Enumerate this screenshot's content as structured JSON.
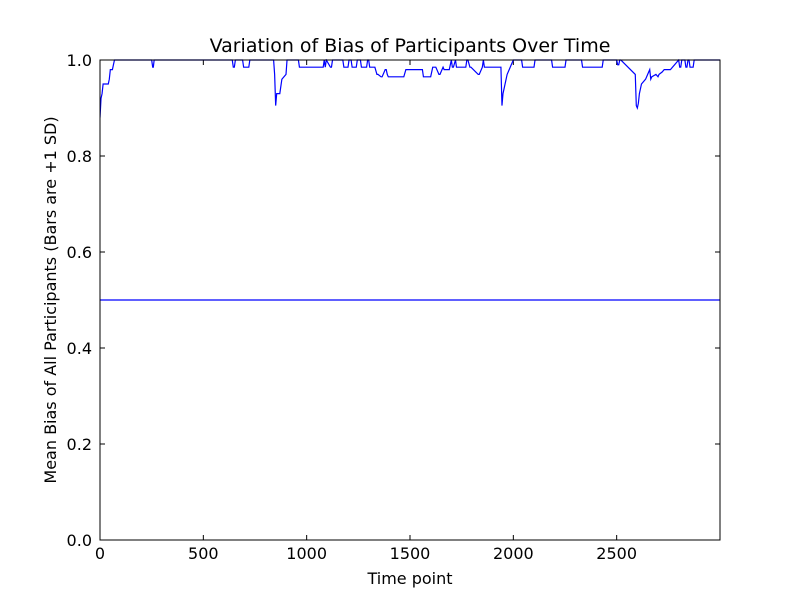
{
  "chart_data": {
    "type": "line",
    "title": "Variation of Bias of Participants Over Time",
    "xlabel": "Time point",
    "ylabel": "Mean Bias of All Participants (Bars are +1 SD)",
    "xlim": [
      0,
      3000
    ],
    "ylim": [
      0,
      1.0
    ],
    "xticks": [
      0,
      500,
      1000,
      1500,
      2000,
      2500
    ],
    "xtick_labels": [
      "0",
      "500",
      "1000",
      "1500",
      "2000",
      "2500"
    ],
    "yticks": [
      0,
      0.2,
      0.4,
      0.6,
      0.8,
      1.0
    ],
    "ytick_labels": [
      "0.0",
      "0.2",
      "0.4",
      "0.6",
      "0.8",
      "1.0"
    ],
    "grid": false,
    "line_color": "#0000ff",
    "series": [
      {
        "values_description": "mean bias",
        "x": [
          0,
          3000
        ],
        "y": [
          0.5,
          0.5
        ]
      },
      {
        "values_description": "mean + 1 SD",
        "x": [
          0,
          5,
          10,
          15,
          20,
          40,
          45,
          50,
          60,
          65,
          70,
          80,
          90,
          250,
          255,
          258,
          262,
          640,
          645,
          650,
          655,
          690,
          695,
          720,
          725,
          840,
          845,
          850,
          855,
          870,
          880,
          900,
          905,
          960,
          965,
          1080,
          1085,
          1090,
          1095,
          1115,
          1120,
          1125,
          1130,
          1175,
          1180,
          1200,
          1205,
          1215,
          1220,
          1240,
          1245,
          1260,
          1265,
          1290,
          1295,
          1300,
          1305,
          1330,
          1340,
          1345,
          1360,
          1365,
          1380,
          1385,
          1390,
          1395,
          1470,
          1480,
          1500,
          1505,
          1560,
          1565,
          1600,
          1610,
          1620,
          1625,
          1640,
          1645,
          1660,
          1665,
          1690,
          1700,
          1705,
          1710,
          1720,
          1725,
          1770,
          1775,
          1780,
          1790,
          1795,
          1830,
          1835,
          1850,
          1855,
          1860,
          1940,
          1945,
          1950,
          1960,
          1970,
          1980,
          1990,
          2000,
          2010,
          2040,
          2045,
          2050,
          2060,
          2070,
          2080,
          2100,
          2105,
          2185,
          2190,
          2250,
          2255,
          2330,
          2335,
          2430,
          2435,
          2500,
          2505,
          2510,
          2515,
          2520,
          2590,
          2595,
          2600,
          2605,
          2610,
          2620,
          2640,
          2650,
          2660,
          2665,
          2670,
          2690,
          2700,
          2705,
          2720,
          2730,
          2760,
          2800,
          2805,
          2810,
          2815,
          2830,
          2835,
          2840,
          2845,
          2850,
          2855,
          2870,
          2875,
          3000
        ],
        "y": [
          0.88,
          0.92,
          0.93,
          0.95,
          0.95,
          0.95,
          0.96,
          0.98,
          0.98,
          0.99,
          1.0,
          1.0,
          1.0,
          1.0,
          0.985,
          0.985,
          1.0,
          1.0,
          0.985,
          0.985,
          1.0,
          1.0,
          0.985,
          0.985,
          1.0,
          1.0,
          0.97,
          0.905,
          0.93,
          0.93,
          0.96,
          0.97,
          1.0,
          1.0,
          0.985,
          0.985,
          1.0,
          0.985,
          1.0,
          0.985,
          0.985,
          1.0,
          1.0,
          1.0,
          0.985,
          0.985,
          1.0,
          1.0,
          0.985,
          0.985,
          1.0,
          1.0,
          0.985,
          0.985,
          1.0,
          1.0,
          0.985,
          0.985,
          0.97,
          0.97,
          0.965,
          0.965,
          0.98,
          0.98,
          0.97,
          0.965,
          0.965,
          0.98,
          0.98,
          0.98,
          0.98,
          0.965,
          0.965,
          0.985,
          0.985,
          0.985,
          0.97,
          0.97,
          0.985,
          0.98,
          0.98,
          1.0,
          0.985,
          0.985,
          1.0,
          0.985,
          0.985,
          1.0,
          1.0,
          0.985,
          0.985,
          0.97,
          0.97,
          0.985,
          1.0,
          0.985,
          0.985,
          0.905,
          0.93,
          0.95,
          0.97,
          0.98,
          0.99,
          1.0,
          1.0,
          1.0,
          0.985,
          0.985,
          0.985,
          0.985,
          0.985,
          0.985,
          1.0,
          1.0,
          0.985,
          0.985,
          1.0,
          1.0,
          0.985,
          0.985,
          1.0,
          1.0,
          0.99,
          0.99,
          1.0,
          1.0,
          0.97,
          0.905,
          0.9,
          0.91,
          0.93,
          0.95,
          0.96,
          0.97,
          0.98,
          0.96,
          0.965,
          0.97,
          0.965,
          0.97,
          0.975,
          0.98,
          0.98,
          1.0,
          0.985,
          0.985,
          1.0,
          1.0,
          0.985,
          0.985,
          1.0,
          1.0,
          0.985,
          0.985,
          1.0,
          1.0
        ]
      }
    ]
  }
}
